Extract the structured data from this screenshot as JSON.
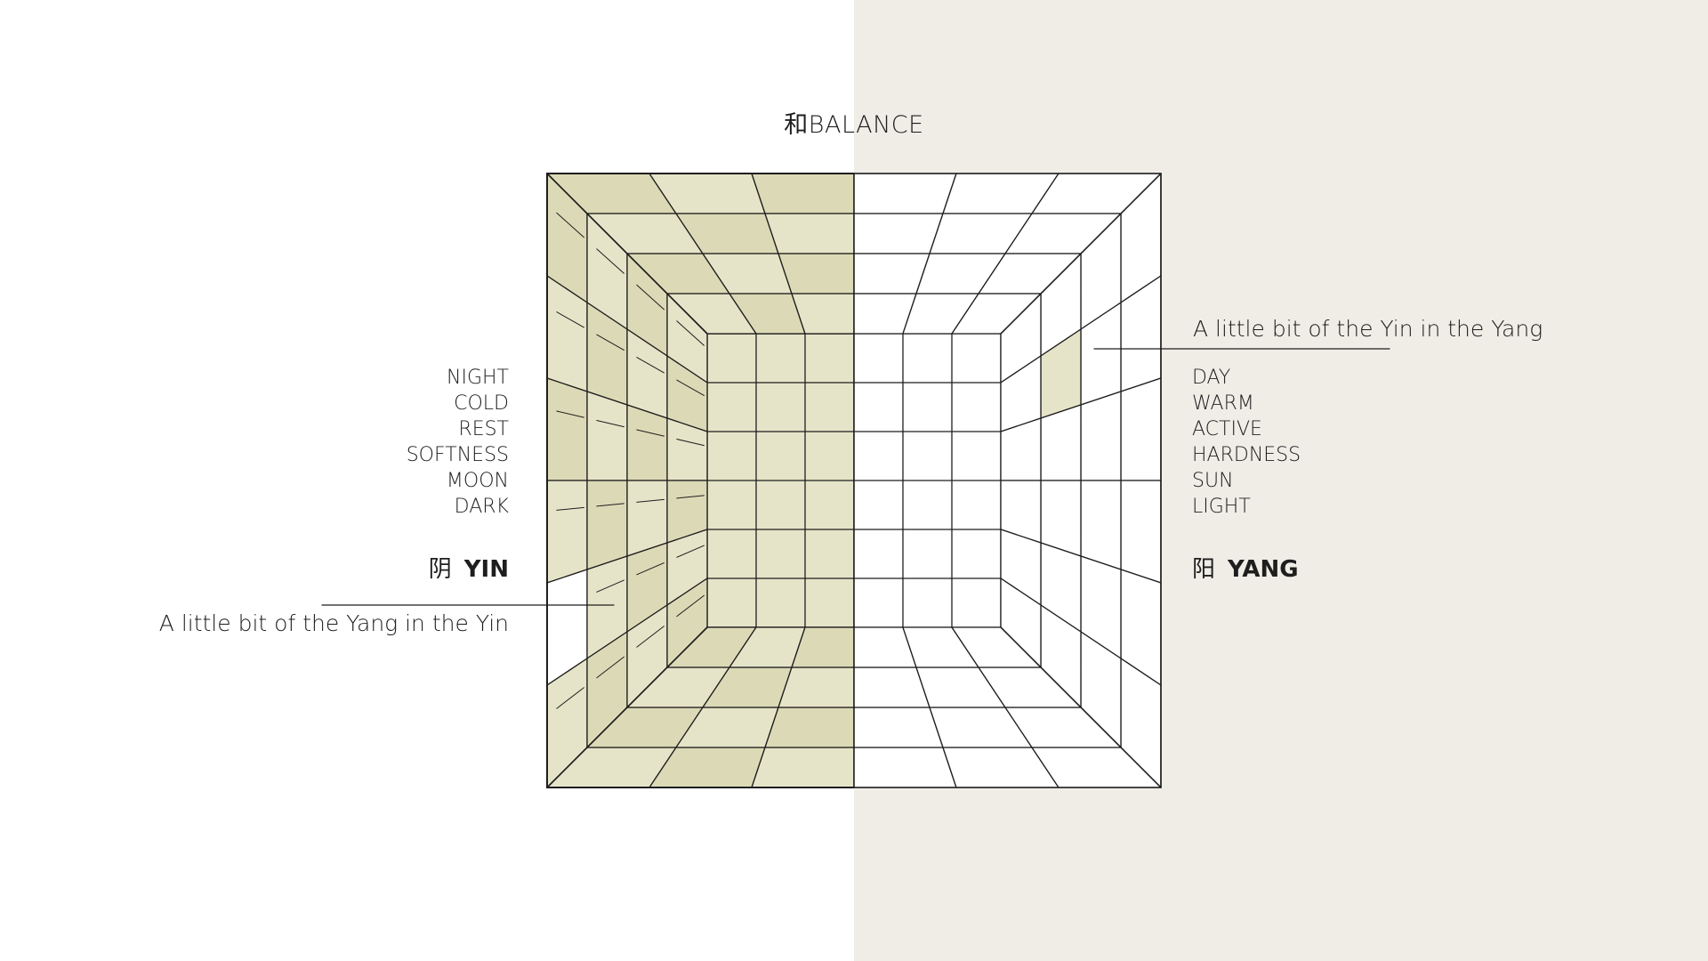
{
  "title": "和BALANCE",
  "colors": {
    "left_background": "#ffffff",
    "right_background": "#f0ede7",
    "yin_fill": "#e6e4c8",
    "yin_fill_dark": "#dcdab6",
    "yang_fill": "#ffffff",
    "line": "#1e1e1e"
  },
  "yin": {
    "glyph": "阴",
    "label": "YIN",
    "words": [
      "NIGHT",
      "COLD",
      "REST",
      "SOFTNESS",
      "MOON",
      "DARK"
    ],
    "note": "A little bit of the Yang in the Yin"
  },
  "yang": {
    "glyph": "阳",
    "label": "YANG",
    "words": [
      "DAY",
      "WARM",
      "ACTIVE",
      "HARDNESS",
      "SUN",
      "LIGHT"
    ],
    "note": "A little bit of the Yin in the Yang"
  }
}
